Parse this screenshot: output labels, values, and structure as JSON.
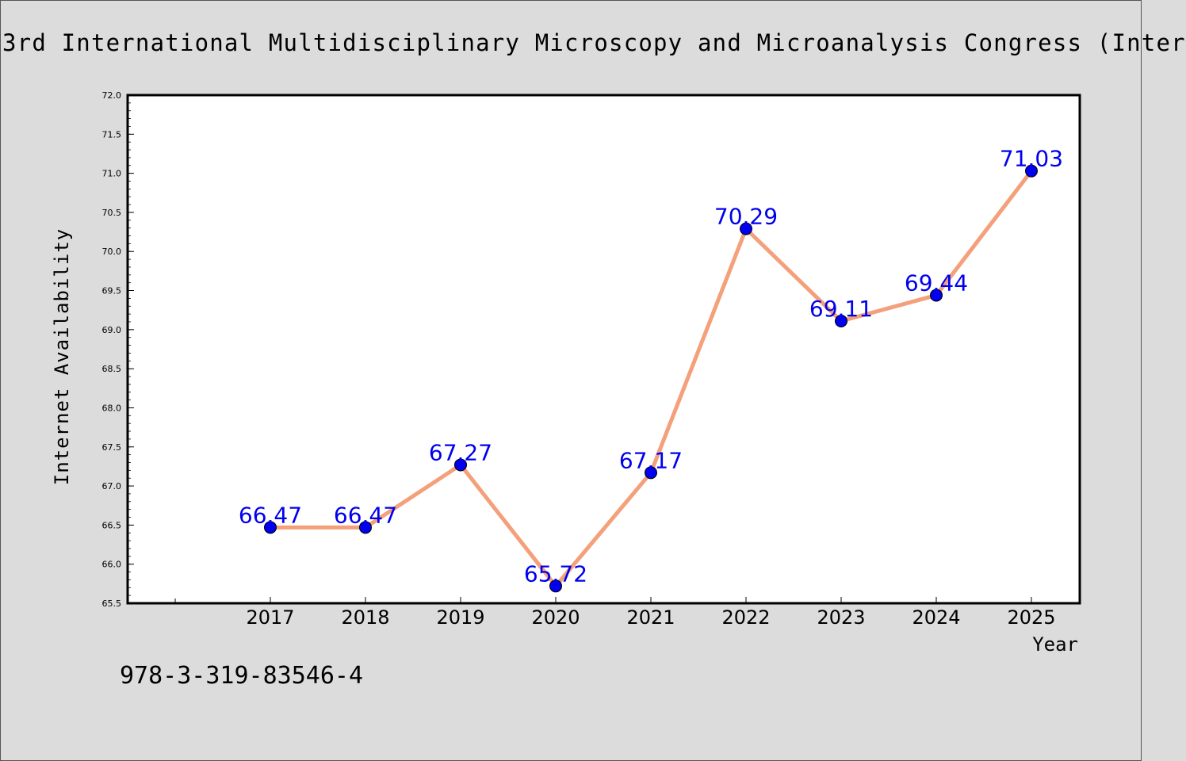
{
  "chart_data": {
    "type": "line",
    "title": "3rd International Multidisciplinary Microscopy and Microanalysis Congress (Inter",
    "xlabel": "Year",
    "ylabel": "Internet Availability",
    "categories": [
      "2017",
      "2018",
      "2019",
      "2020",
      "2021",
      "2022",
      "2023",
      "2024",
      "2025"
    ],
    "values": [
      66.47,
      66.47,
      67.27,
      65.72,
      67.17,
      70.29,
      69.11,
      69.44,
      71.03
    ],
    "data_labels": [
      "66.47",
      "66.47",
      "67.27",
      "65.72",
      "67.17",
      "70.29",
      "69.11",
      "69.44",
      "71.03"
    ],
    "ylim": [
      65.5,
      72.0
    ],
    "yticks": [
      "65.5",
      "66.0",
      "66.5",
      "67.0",
      "67.5",
      "68.0",
      "68.5",
      "69.0",
      "69.5",
      "70.0",
      "70.5",
      "71.0",
      "71.5",
      "72.0"
    ],
    "grid": false,
    "colors": {
      "line": "#f4a07a",
      "marker": "#0000ee",
      "label": "#0000ee",
      "axis": "#000000",
      "plot_bg": "#ffffff"
    }
  },
  "footer": {
    "isbn": "978-3-319-83546-4"
  }
}
